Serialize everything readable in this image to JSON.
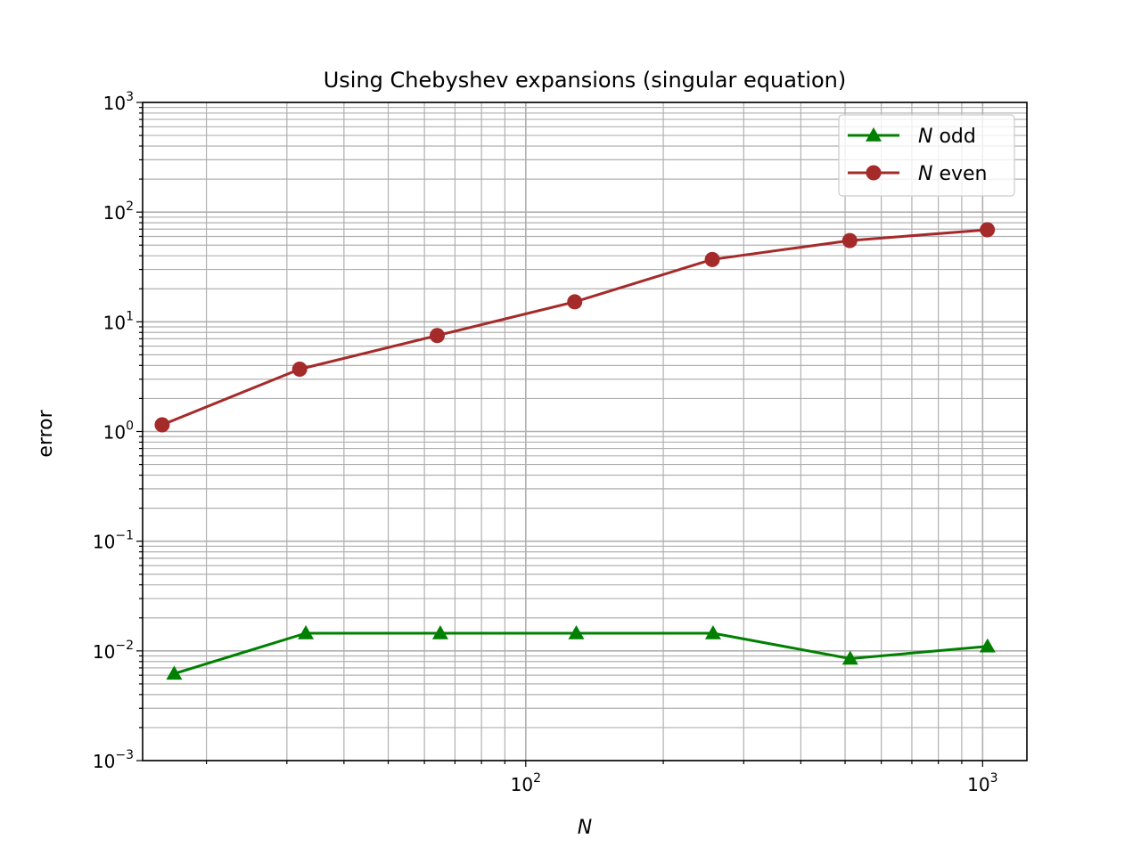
{
  "chart_data": {
    "type": "line",
    "title": "Using Chebyshev expansions (singular equation)",
    "xlabel": "N",
    "ylabel": "error",
    "xscale": "log",
    "yscale": "log",
    "xlim": [
      14.5,
      1250
    ],
    "ylim": [
      0.001,
      1000
    ],
    "grid": "major and minor",
    "legend_position": "upper right",
    "x_tick_labels": [
      {
        "value": 100,
        "base": "10",
        "exp": "2"
      },
      {
        "value": 1000,
        "base": "10",
        "exp": "3"
      }
    ],
    "y_tick_labels": [
      {
        "value": 0.001,
        "base": "10",
        "exp": "−3"
      },
      {
        "value": 0.01,
        "base": "10",
        "exp": "−2"
      },
      {
        "value": 0.1,
        "base": "10",
        "exp": "−1"
      },
      {
        "value": 1,
        "base": "10",
        "exp": "0"
      },
      {
        "value": 10,
        "base": "10",
        "exp": "1"
      },
      {
        "value": 100,
        "base": "10",
        "exp": "2"
      },
      {
        "value": 1000,
        "base": "10",
        "exp": "3"
      }
    ],
    "series": [
      {
        "name": "N odd",
        "name_var": "N",
        "name_rest": " odd",
        "color": "#008000",
        "marker": "triangle",
        "x": [
          17,
          33,
          65,
          129,
          257,
          513,
          1025
        ],
        "y": [
          0.0062,
          0.0145,
          0.0145,
          0.0145,
          0.0145,
          0.0085,
          0.011
        ]
      },
      {
        "name": "N even",
        "name_var": "N",
        "name_rest": " even",
        "color": "#a52a2a",
        "marker": "circle",
        "x": [
          16,
          32,
          64,
          128,
          256,
          512,
          1024
        ],
        "y": [
          1.15,
          3.7,
          7.5,
          15.2,
          37,
          55,
          69
        ]
      }
    ]
  }
}
